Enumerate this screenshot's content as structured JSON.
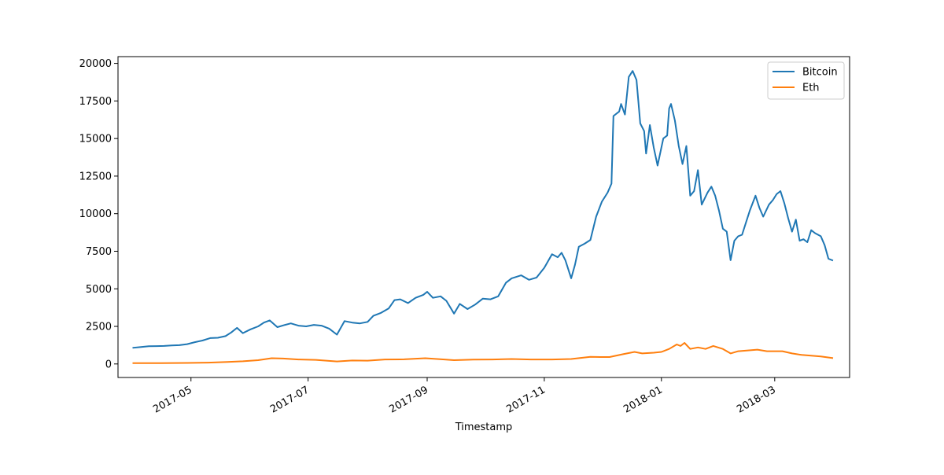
{
  "chart_data": {
    "type": "line",
    "xlabel": "Timestamp",
    "ylabel": "",
    "xlim": [
      "2017-03-24",
      "2018-04-09"
    ],
    "ylim": [
      -900,
      20450
    ],
    "x_ticks": [
      "2017-05-01",
      "2017-07-01",
      "2017-09-01",
      "2017-11-01",
      "2018-01-01",
      "2018-03-01"
    ],
    "x_tick_labels": [
      "2017-05",
      "2017-07",
      "2017-09",
      "2017-11",
      "2018-01",
      "2018-03"
    ],
    "y_ticks": [
      0,
      2500,
      5000,
      7500,
      10000,
      12500,
      15000,
      17500,
      20000
    ],
    "y_tick_labels": [
      "0",
      "2500",
      "5000",
      "7500",
      "10000",
      "12500",
      "15000",
      "17500",
      "20000"
    ],
    "grid": false,
    "legend_position": "top-right",
    "series": [
      {
        "name": "Bitcoin",
        "color": "#1f77b4",
        "points": [
          [
            "2017-04-01",
            1080
          ],
          [
            "2017-04-05",
            1130
          ],
          [
            "2017-04-09",
            1180
          ],
          [
            "2017-04-13",
            1190
          ],
          [
            "2017-04-17",
            1200
          ],
          [
            "2017-04-21",
            1230
          ],
          [
            "2017-04-25",
            1250
          ],
          [
            "2017-04-29",
            1320
          ],
          [
            "2017-05-03",
            1450
          ],
          [
            "2017-05-07",
            1560
          ],
          [
            "2017-05-11",
            1720
          ],
          [
            "2017-05-15",
            1740
          ],
          [
            "2017-05-19",
            1850
          ],
          [
            "2017-05-22",
            2100
          ],
          [
            "2017-05-25",
            2400
          ],
          [
            "2017-05-28",
            2050
          ],
          [
            "2017-06-01",
            2300
          ],
          [
            "2017-06-05",
            2500
          ],
          [
            "2017-06-08",
            2750
          ],
          [
            "2017-06-11",
            2900
          ],
          [
            "2017-06-15",
            2450
          ],
          [
            "2017-06-19",
            2600
          ],
          [
            "2017-06-22",
            2700
          ],
          [
            "2017-06-26",
            2550
          ],
          [
            "2017-06-30",
            2500
          ],
          [
            "2017-07-04",
            2600
          ],
          [
            "2017-07-08",
            2550
          ],
          [
            "2017-07-12",
            2350
          ],
          [
            "2017-07-16",
            1950
          ],
          [
            "2017-07-20",
            2850
          ],
          [
            "2017-07-24",
            2750
          ],
          [
            "2017-07-28",
            2700
          ],
          [
            "2017-08-01",
            2800
          ],
          [
            "2017-08-04",
            3200
          ],
          [
            "2017-08-08",
            3400
          ],
          [
            "2017-08-12",
            3700
          ],
          [
            "2017-08-15",
            4250
          ],
          [
            "2017-08-18",
            4300
          ],
          [
            "2017-08-22",
            4050
          ],
          [
            "2017-08-26",
            4400
          ],
          [
            "2017-08-30",
            4600
          ],
          [
            "2017-09-01",
            4800
          ],
          [
            "2017-09-04",
            4400
          ],
          [
            "2017-09-08",
            4500
          ],
          [
            "2017-09-11",
            4200
          ],
          [
            "2017-09-15",
            3350
          ],
          [
            "2017-09-18",
            4000
          ],
          [
            "2017-09-22",
            3650
          ],
          [
            "2017-09-26",
            3950
          ],
          [
            "2017-09-30",
            4350
          ],
          [
            "2017-10-04",
            4300
          ],
          [
            "2017-10-08",
            4500
          ],
          [
            "2017-10-12",
            5400
          ],
          [
            "2017-10-15",
            5700
          ],
          [
            "2017-10-20",
            5900
          ],
          [
            "2017-10-24",
            5600
          ],
          [
            "2017-10-28",
            5750
          ],
          [
            "2017-11-01",
            6400
          ],
          [
            "2017-11-05",
            7300
          ],
          [
            "2017-11-08",
            7100
          ],
          [
            "2017-11-10",
            7400
          ],
          [
            "2017-11-12",
            6900
          ],
          [
            "2017-11-15",
            5700
          ],
          [
            "2017-11-17",
            6600
          ],
          [
            "2017-11-19",
            7800
          ],
          [
            "2017-11-22",
            8000
          ],
          [
            "2017-11-25",
            8250
          ],
          [
            "2017-11-28",
            9800
          ],
          [
            "2017-12-01",
            10800
          ],
          [
            "2017-12-04",
            11400
          ],
          [
            "2017-12-06",
            12000
          ],
          [
            "2017-12-07",
            16500
          ],
          [
            "2017-12-10",
            16800
          ],
          [
            "2017-12-11",
            17300
          ],
          [
            "2017-12-13",
            16600
          ],
          [
            "2017-12-15",
            19100
          ],
          [
            "2017-12-17",
            19500
          ],
          [
            "2017-12-19",
            18900
          ],
          [
            "2017-12-21",
            16000
          ],
          [
            "2017-12-23",
            15500
          ],
          [
            "2017-12-24",
            14000
          ],
          [
            "2017-12-26",
            15900
          ],
          [
            "2017-12-28",
            14400
          ],
          [
            "2017-12-30",
            13200
          ],
          [
            "2018-01-02",
            15000
          ],
          [
            "2018-01-04",
            15200
          ],
          [
            "2018-01-05",
            17000
          ],
          [
            "2018-01-06",
            17300
          ],
          [
            "2018-01-08",
            16200
          ],
          [
            "2018-01-10",
            14500
          ],
          [
            "2018-01-12",
            13300
          ],
          [
            "2018-01-14",
            14500
          ],
          [
            "2018-01-16",
            11200
          ],
          [
            "2018-01-18",
            11500
          ],
          [
            "2018-01-20",
            12900
          ],
          [
            "2018-01-22",
            10600
          ],
          [
            "2018-01-25",
            11400
          ],
          [
            "2018-01-27",
            11800
          ],
          [
            "2018-01-29",
            11200
          ],
          [
            "2018-01-31",
            10200
          ],
          [
            "2018-02-02",
            9000
          ],
          [
            "2018-02-04",
            8800
          ],
          [
            "2018-02-06",
            6900
          ],
          [
            "2018-02-08",
            8200
          ],
          [
            "2018-02-10",
            8500
          ],
          [
            "2018-02-12",
            8600
          ],
          [
            "2018-02-14",
            9400
          ],
          [
            "2018-02-16",
            10200
          ],
          [
            "2018-02-19",
            11200
          ],
          [
            "2018-02-21",
            10400
          ],
          [
            "2018-02-23",
            9800
          ],
          [
            "2018-02-26",
            10600
          ],
          [
            "2018-02-28",
            10900
          ],
          [
            "2018-03-02",
            11300
          ],
          [
            "2018-03-04",
            11500
          ],
          [
            "2018-03-06",
            10700
          ],
          [
            "2018-03-08",
            9700
          ],
          [
            "2018-03-10",
            8800
          ],
          [
            "2018-03-12",
            9600
          ],
          [
            "2018-03-14",
            8200
          ],
          [
            "2018-03-16",
            8300
          ],
          [
            "2018-03-18",
            8100
          ],
          [
            "2018-03-20",
            8900
          ],
          [
            "2018-03-22",
            8700
          ],
          [
            "2018-03-25",
            8500
          ],
          [
            "2018-03-27",
            7900
          ],
          [
            "2018-03-29",
            7000
          ],
          [
            "2018-03-31",
            6900
          ]
        ]
      },
      {
        "name": "Eth",
        "color": "#ff7f0e",
        "points": [
          [
            "2017-04-01",
            50
          ],
          [
            "2017-04-15",
            50
          ],
          [
            "2017-04-29",
            70
          ],
          [
            "2017-05-10",
            90
          ],
          [
            "2017-05-20",
            130
          ],
          [
            "2017-05-28",
            180
          ],
          [
            "2017-06-05",
            250
          ],
          [
            "2017-06-12",
            380
          ],
          [
            "2017-06-18",
            360
          ],
          [
            "2017-06-26",
            300
          ],
          [
            "2017-07-05",
            270
          ],
          [
            "2017-07-16",
            170
          ],
          [
            "2017-07-24",
            230
          ],
          [
            "2017-08-01",
            220
          ],
          [
            "2017-08-10",
            300
          ],
          [
            "2017-08-20",
            310
          ],
          [
            "2017-08-31",
            380
          ],
          [
            "2017-09-10",
            300
          ],
          [
            "2017-09-15",
            250
          ],
          [
            "2017-09-25",
            290
          ],
          [
            "2017-10-05",
            300
          ],
          [
            "2017-10-15",
            330
          ],
          [
            "2017-10-25",
            300
          ],
          [
            "2017-11-05",
            300
          ],
          [
            "2017-11-15",
            330
          ],
          [
            "2017-11-25",
            470
          ],
          [
            "2017-12-01",
            460
          ],
          [
            "2017-12-05",
            460
          ],
          [
            "2017-12-12",
            650
          ],
          [
            "2017-12-18",
            800
          ],
          [
            "2017-12-22",
            700
          ],
          [
            "2017-12-28",
            750
          ],
          [
            "2018-01-01",
            800
          ],
          [
            "2018-01-05",
            1000
          ],
          [
            "2018-01-09",
            1300
          ],
          [
            "2018-01-11",
            1200
          ],
          [
            "2018-01-13",
            1400
          ],
          [
            "2018-01-16",
            1000
          ],
          [
            "2018-01-20",
            1100
          ],
          [
            "2018-01-24",
            1000
          ],
          [
            "2018-01-28",
            1200
          ],
          [
            "2018-02-02",
            1000
          ],
          [
            "2018-02-06",
            700
          ],
          [
            "2018-02-10",
            850
          ],
          [
            "2018-02-15",
            900
          ],
          [
            "2018-02-20",
            950
          ],
          [
            "2018-02-25",
            850
          ],
          [
            "2018-03-05",
            850
          ],
          [
            "2018-03-10",
            700
          ],
          [
            "2018-03-15",
            600
          ],
          [
            "2018-03-20",
            550
          ],
          [
            "2018-03-25",
            500
          ],
          [
            "2018-03-31",
            400
          ]
        ]
      }
    ]
  }
}
